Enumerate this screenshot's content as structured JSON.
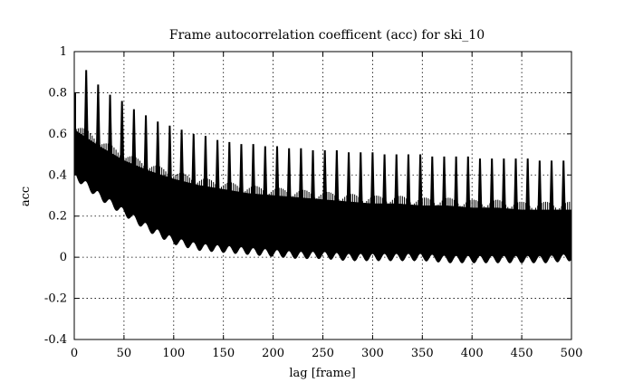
{
  "chart_data": {
    "type": "line",
    "title": "Frame autocorrelation coefficent (acc) for ski_10",
    "xlabel": "lag [frame]",
    "ylabel": "acc",
    "xlim": [
      0,
      500
    ],
    "ylim": [
      -0.4,
      1
    ],
    "x_ticks": [
      0,
      50,
      100,
      150,
      200,
      250,
      300,
      350,
      400,
      450,
      500
    ],
    "y_ticks": [
      -0.4,
      -0.2,
      0,
      0.2,
      0.4,
      0.6,
      0.8,
      1
    ],
    "x_tick_labels": [
      "0",
      "50",
      "100",
      "150",
      "200",
      "250",
      "300",
      "350",
      "400",
      "450",
      "500"
    ],
    "y_tick_labels": [
      "-0.4",
      "-0.2",
      "0",
      "0.2",
      "0.4",
      "0.6",
      "0.8",
      "1"
    ],
    "grid": true,
    "line_color": "#000000",
    "series": [
      {
        "description_free": true,
        "envelope_x": [
          0,
          25,
          50,
          75,
          100,
          125,
          150,
          175,
          200,
          225,
          250,
          275,
          300,
          325,
          350,
          375,
          400,
          425,
          450,
          475,
          500
        ],
        "upper": [
          0.62,
          0.54,
          0.47,
          0.42,
          0.38,
          0.35,
          0.33,
          0.31,
          0.3,
          0.29,
          0.28,
          0.27,
          0.26,
          0.26,
          0.25,
          0.25,
          0.24,
          0.24,
          0.23,
          0.23,
          0.23
        ],
        "lower": [
          0.4,
          0.3,
          0.22,
          0.14,
          0.08,
          0.05,
          0.04,
          0.03,
          0.02,
          0.01,
          0.01,
          0.0,
          0.0,
          0.0,
          0.0,
          -0.01,
          -0.01,
          -0.01,
          -0.01,
          -0.01,
          0.0
        ],
        "peak_period": 12,
        "peak_x": [
          12,
          24,
          36,
          48,
          60,
          72,
          84,
          96,
          108,
          120,
          132,
          144,
          156,
          168,
          180,
          192,
          204,
          216,
          228,
          240,
          252,
          264,
          276,
          288,
          300,
          312,
          324,
          336,
          348,
          360,
          372,
          384,
          396,
          408,
          420,
          432,
          444,
          456,
          468,
          480,
          492
        ],
        "peak_y": [
          0.91,
          0.84,
          0.79,
          0.76,
          0.72,
          0.69,
          0.66,
          0.64,
          0.62,
          0.6,
          0.59,
          0.57,
          0.56,
          0.55,
          0.55,
          0.54,
          0.54,
          0.53,
          0.53,
          0.52,
          0.52,
          0.52,
          0.51,
          0.51,
          0.51,
          0.5,
          0.5,
          0.5,
          0.5,
          0.49,
          0.49,
          0.49,
          0.49,
          0.48,
          0.48,
          0.48,
          0.48,
          0.48,
          0.47,
          0.47,
          0.47
        ]
      }
    ]
  }
}
